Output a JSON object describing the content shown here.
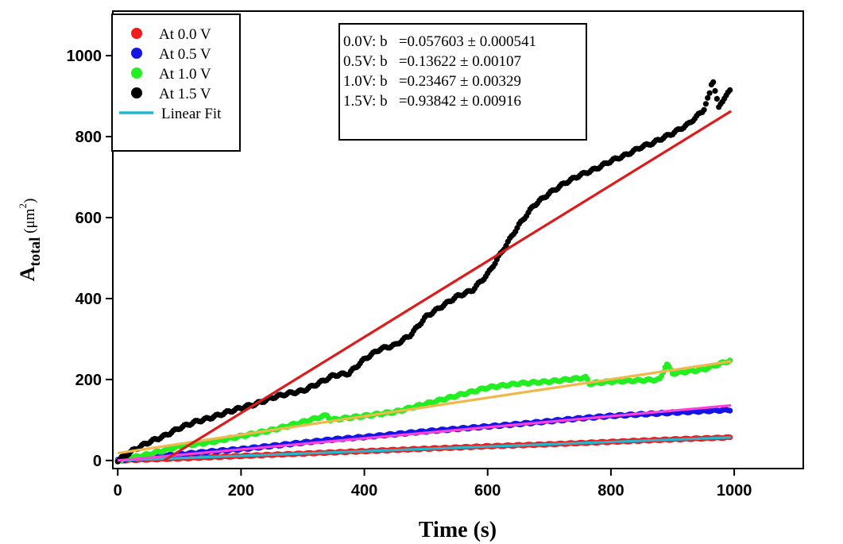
{
  "chart_data": {
    "type": "scatter",
    "xlabel": "Time (s)",
    "ylabel": {
      "main": "A",
      "sub": "total",
      "unit_open": " (μm",
      "unit_sup": "2",
      "unit_close": ")"
    },
    "xlim": [
      -8,
      1112
    ],
    "ylim": [
      -20,
      1110
    ],
    "x_ticks": [
      0,
      200,
      400,
      600,
      800,
      1000
    ],
    "y_ticks": [
      0,
      200,
      400,
      600,
      800,
      1000
    ],
    "grid": false,
    "legend_position": "top-left",
    "legend": [
      {
        "label": "At 0.0 V",
        "color": "#ee1c1c",
        "kind": "marker"
      },
      {
        "label": "At 0.5 V",
        "color": "#1414e6",
        "kind": "marker"
      },
      {
        "label": "At 1.0 V",
        "color": "#22ee22",
        "kind": "marker"
      },
      {
        "label": "At 1.5 V",
        "color": "#000000",
        "kind": "marker"
      },
      {
        "label": "Linear Fit",
        "color": "#23b8cf",
        "kind": "line"
      }
    ],
    "annotation": [
      "0.0V: b   =0.057603 ± 0.000541",
      "0.5V: b   =0.13622 ± 0.00107",
      "1.0V: b   =0.23467 ± 0.00329",
      "1.5V: b   =0.93842 ± 0.00916"
    ],
    "series": [
      {
        "legend": "At 0.0 V",
        "color": "#ee1c1c",
        "x": [
          0,
          100,
          200,
          300,
          400,
          500,
          600,
          700,
          800,
          900,
          995
        ],
        "y": [
          0,
          5,
          11,
          17,
          23,
          29,
          35,
          40,
          46,
          52,
          57
        ]
      },
      {
        "legend": "At 0.5 V",
        "color": "#1414e6",
        "x": [
          0,
          50,
          100,
          150,
          200,
          250,
          300,
          350,
          400,
          450,
          500,
          550,
          600,
          650,
          700,
          750,
          800,
          850,
          900,
          950,
          995
        ],
        "y": [
          0,
          8,
          15,
          22,
          28,
          36,
          44,
          52,
          58,
          65,
          72,
          78,
          84,
          90,
          97,
          104,
          110,
          114,
          118,
          122,
          125
        ]
      },
      {
        "legend": "At 1.0 V",
        "color": "#22ee22",
        "x": [
          0,
          50,
          100,
          150,
          200,
          250,
          300,
          340,
          345,
          400,
          450,
          500,
          550,
          600,
          650,
          700,
          760,
          765,
          800,
          850,
          880,
          890,
          900,
          950,
          995
        ],
        "y": [
          0,
          15,
          35,
          45,
          60,
          75,
          95,
          112,
          100,
          110,
          120,
          140,
          160,
          180,
          190,
          195,
          205,
          190,
          195,
          198,
          200,
          240,
          215,
          225,
          248
        ]
      },
      {
        "legend": "At 1.5 V",
        "color": "#000000",
        "x": [
          0,
          25,
          50,
          75,
          100,
          125,
          150,
          175,
          200,
          225,
          250,
          275,
          300,
          325,
          350,
          375,
          400,
          425,
          450,
          475,
          500,
          525,
          550,
          575,
          600,
          625,
          650,
          675,
          700,
          725,
          750,
          775,
          800,
          825,
          850,
          870,
          875,
          900,
          925,
          950,
          960,
          965,
          975,
          985,
          995
        ],
        "y": [
          0,
          25,
          45,
          60,
          80,
          95,
          105,
          118,
          130,
          140,
          155,
          165,
          172,
          190,
          210,
          215,
          250,
          275,
          285,
          310,
          355,
          380,
          405,
          420,
          460,
          520,
          580,
          630,
          660,
          685,
          705,
          720,
          740,
          755,
          775,
          785,
          790,
          808,
          830,
          865,
          905,
          945,
          870,
          900,
          915
        ]
      }
    ],
    "fits": [
      {
        "color": "#23b8cf",
        "x": [
          0,
          995
        ],
        "y": [
          0,
          57
        ]
      },
      {
        "color": "#ff40d8",
        "x": [
          0,
          995
        ],
        "y": [
          0,
          136
        ]
      },
      {
        "color": "#f0b84c",
        "x": [
          0,
          995
        ],
        "y": [
          18,
          245
        ]
      },
      {
        "color": "#dc1c1c",
        "x": [
          75,
          995
        ],
        "y": [
          0,
          863
        ]
      }
    ]
  }
}
